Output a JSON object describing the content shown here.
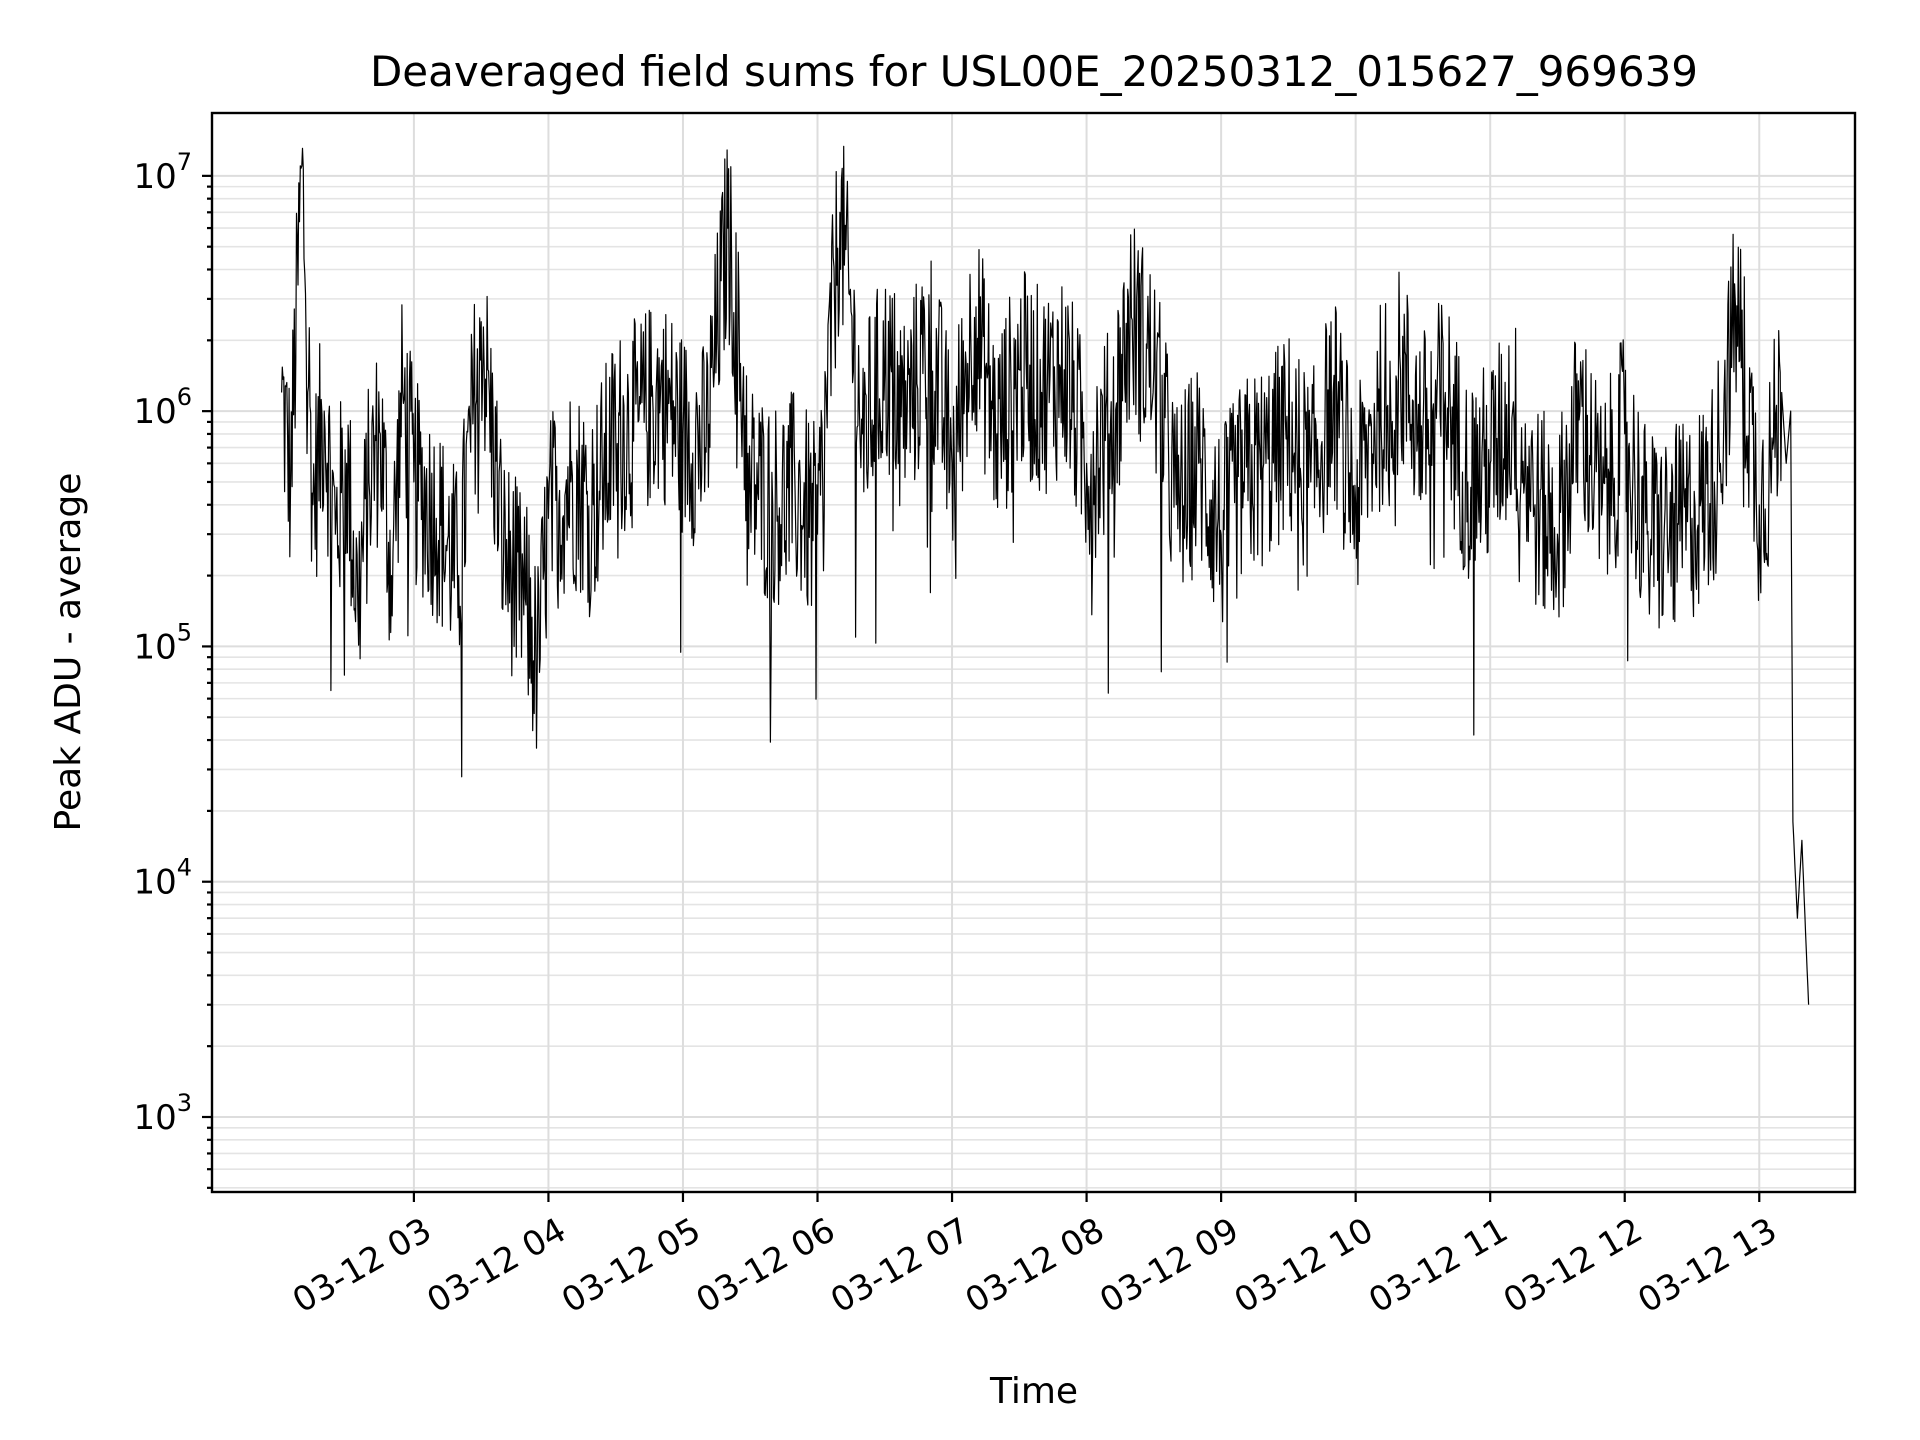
{
  "chart_data": {
    "type": "line",
    "title": "Deaveraged field sums for USL00E_20250312_015627_969639",
    "xlabel": "Time",
    "ylabel": "Peak ADU - average",
    "yscale": "log",
    "ylim": [
      480,
      18500000
    ],
    "xlim": [
      "2025-03-12 02:01",
      "2025-03-12 13:22"
    ],
    "grid": "on (major and minor)",
    "legend": "none",
    "line_color": "#000000",
    "x_ticks": [
      "03-12 03",
      "03-12 04",
      "03-12 05",
      "03-12 06",
      "03-12 07",
      "03-12 08",
      "03-12 09",
      "03-12 10",
      "03-12 11",
      "03-12 12",
      "03-12 13"
    ],
    "y_ticks": [
      {
        "base": "10",
        "exp": "3"
      },
      {
        "base": "10",
        "exp": "4"
      },
      {
        "base": "10",
        "exp": "5"
      },
      {
        "base": "10",
        "exp": "6"
      },
      {
        "base": "10",
        "exp": "7"
      }
    ],
    "series": [
      {
        "x": [
          "2025-03-12 02:01",
          "2025-03-12 02:05",
          "2025-03-12 02:10",
          "2025-03-12 02:15",
          "2025-03-12 02:20",
          "2025-03-12 02:25",
          "2025-03-12 02:30",
          "2025-03-12 02:35",
          "2025-03-12 02:40",
          "2025-03-12 02:45",
          "2025-03-12 02:50",
          "2025-03-12 02:55",
          "2025-03-12 03:00",
          "2025-03-12 03:10",
          "2025-03-12 03:20",
          "2025-03-12 03:30",
          "2025-03-12 03:40",
          "2025-03-12 03:50",
          "2025-03-12 03:55",
          "2025-03-12 04:00",
          "2025-03-12 04:10",
          "2025-03-12 04:20",
          "2025-03-12 04:30",
          "2025-03-12 04:40",
          "2025-03-12 04:50",
          "2025-03-12 05:00",
          "2025-03-12 05:10",
          "2025-03-12 05:20",
          "2025-03-12 05:30",
          "2025-03-12 05:40",
          "2025-03-12 05:50",
          "2025-03-12 06:00",
          "2025-03-12 06:10",
          "2025-03-12 06:20",
          "2025-03-12 06:30",
          "2025-03-12 06:40",
          "2025-03-12 06:50",
          "2025-03-12 07:00",
          "2025-03-12 07:10",
          "2025-03-12 07:20",
          "2025-03-12 07:30",
          "2025-03-12 07:40",
          "2025-03-12 07:50",
          "2025-03-12 08:00",
          "2025-03-12 08:10",
          "2025-03-12 08:20",
          "2025-03-12 08:30",
          "2025-03-12 08:40",
          "2025-03-12 08:50",
          "2025-03-12 09:00",
          "2025-03-12 09:10",
          "2025-03-12 09:20",
          "2025-03-12 09:30",
          "2025-03-12 09:40",
          "2025-03-12 09:50",
          "2025-03-12 10:00",
          "2025-03-12 10:10",
          "2025-03-12 10:20",
          "2025-03-12 10:30",
          "2025-03-12 10:40",
          "2025-03-12 10:50",
          "2025-03-12 11:00",
          "2025-03-12 11:10",
          "2025-03-12 11:20",
          "2025-03-12 11:30",
          "2025-03-12 11:40",
          "2025-03-12 11:50",
          "2025-03-12 12:00",
          "2025-03-12 12:10",
          "2025-03-12 12:20",
          "2025-03-12 12:30",
          "2025-03-12 12:40",
          "2025-03-12 12:50",
          "2025-03-12 13:00",
          "2025-03-12 13:05",
          "2025-03-12 13:10",
          "2025-03-12 13:12",
          "2025-03-12 13:14",
          "2025-03-12 13:15",
          "2025-03-12 13:17",
          "2025-03-12 13:19",
          "2025-03-12 13:21",
          "2025-03-12 13:22"
        ],
        "y": [
          1200000,
          500000,
          11000000,
          400000,
          1000000,
          300000,
          600000,
          150000,
          500000,
          800000,
          200000,
          1200000,
          500000,
          350000,
          200000,
          2400000,
          250000,
          150000,
          80000,
          350000,
          500000,
          400000,
          800000,
          900000,
          1200000,
          800000,
          700000,
          6000000,
          500000,
          400000,
          450000,
          300000,
          7000000,
          800000,
          1500000,
          1000000,
          2000000,
          600000,
          2500000,
          800000,
          1500000,
          1200000,
          1500000,
          600000,
          800000,
          2500000,
          1500000,
          400000,
          600000,
          300000,
          500000,
          600000,
          800000,
          500000,
          1200000,
          400000,
          1000000,
          1500000,
          800000,
          1200000,
          500000,
          600000,
          1000000,
          400000,
          300000,
          1000000,
          400000,
          800000,
          300000,
          300000,
          350000,
          500000,
          2800000,
          400000,
          600000,
          1200000,
          600000,
          1000000,
          18000,
          7000,
          15000,
          5000,
          3000
        ]
      }
    ]
  }
}
